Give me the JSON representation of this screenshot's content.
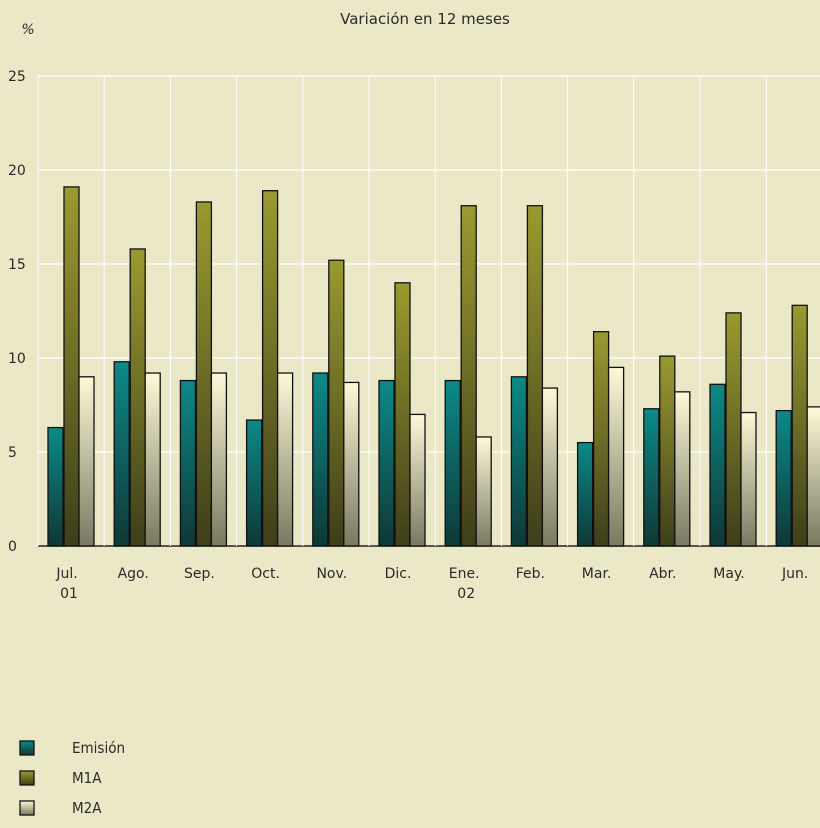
{
  "chart_data": {
    "type": "bar",
    "title": "Variación en 12 meses",
    "ylabel": "%",
    "xlabel": "",
    "ylim": [
      0,
      25
    ],
    "yticks": [
      0,
      5,
      10,
      15,
      20,
      25
    ],
    "grid": true,
    "legend_position": "bottom-left",
    "categories": [
      {
        "label": "Jul.",
        "sublabel": "01"
      },
      {
        "label": "Ago.",
        "sublabel": ""
      },
      {
        "label": "Sep.",
        "sublabel": ""
      },
      {
        "label": "Oct.",
        "sublabel": ""
      },
      {
        "label": "Nov.",
        "sublabel": ""
      },
      {
        "label": "Dic.",
        "sublabel": ""
      },
      {
        "label": "Ene.",
        "sublabel": "02"
      },
      {
        "label": "Feb.",
        "sublabel": ""
      },
      {
        "label": "Mar.",
        "sublabel": ""
      },
      {
        "label": "Abr.",
        "sublabel": ""
      },
      {
        "label": "May.",
        "sublabel": ""
      },
      {
        "label": "Jun.",
        "sublabel": ""
      }
    ],
    "series": [
      {
        "name": "Emisión",
        "color_top": "#0c8a88",
        "color_bottom": "#0e3836",
        "values": [
          6.3,
          9.8,
          8.8,
          6.7,
          9.2,
          8.8,
          8.8,
          9.0,
          5.5,
          7.3,
          8.6,
          7.2
        ]
      },
      {
        "name": "M1A",
        "color_top": "#9a9a30",
        "color_bottom": "#3e3e1a",
        "values": [
          19.1,
          15.8,
          18.3,
          18.9,
          15.2,
          14.0,
          18.1,
          18.1,
          11.4,
          10.1,
          12.4,
          12.8
        ]
      },
      {
        "name": "M2A",
        "color_top": "#fcfad8",
        "color_bottom": "#7a7860",
        "values": [
          9.0,
          9.2,
          9.2,
          9.2,
          8.7,
          7.0,
          5.8,
          8.4,
          9.5,
          8.2,
          7.1,
          7.4
        ]
      }
    ]
  }
}
